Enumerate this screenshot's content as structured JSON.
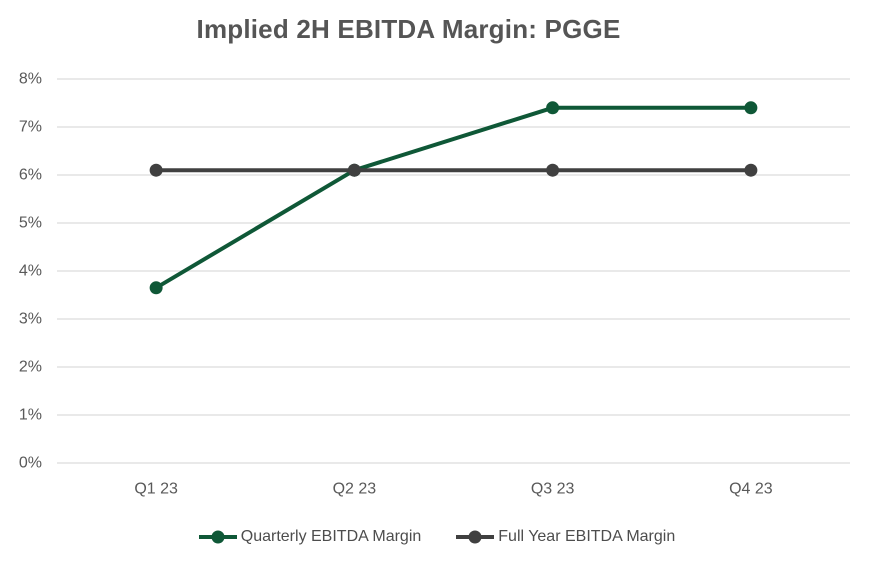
{
  "title": "Implied 2H EBITDA Margin: PGGE",
  "chart_data": {
    "type": "line",
    "title": "Implied 2H EBITDA Margin: PGGE",
    "categories": [
      "Q1 23",
      "Q2 23",
      "Q3 23",
      "Q4 23"
    ],
    "series": [
      {
        "name": "Quarterly EBITDA Margin",
        "values": [
          3.65,
          6.1,
          7.4,
          7.4
        ],
        "color": "#0f5837"
      },
      {
        "name": "Full Year EBITDA Margin",
        "values": [
          6.1,
          6.1,
          6.1,
          6.1
        ],
        "color": "#404040"
      }
    ],
    "xlabel": "",
    "ylabel": "",
    "ylim": [
      0,
      8
    ],
    "ytick_step": 1,
    "ytick_suffix": "%",
    "ytick_labels": [
      "0%",
      "1%",
      "2%",
      "3%",
      "4%",
      "5%",
      "6%",
      "7%",
      "8%"
    ],
    "grid": "horizontal-only",
    "legend_position": "bottom-center"
  },
  "style_colors": {
    "gridline": "#e2e2e2",
    "tick_text": "#595959",
    "title_text": "#555555",
    "legend_text": "#4d4d4d",
    "background": "#ffffff"
  }
}
